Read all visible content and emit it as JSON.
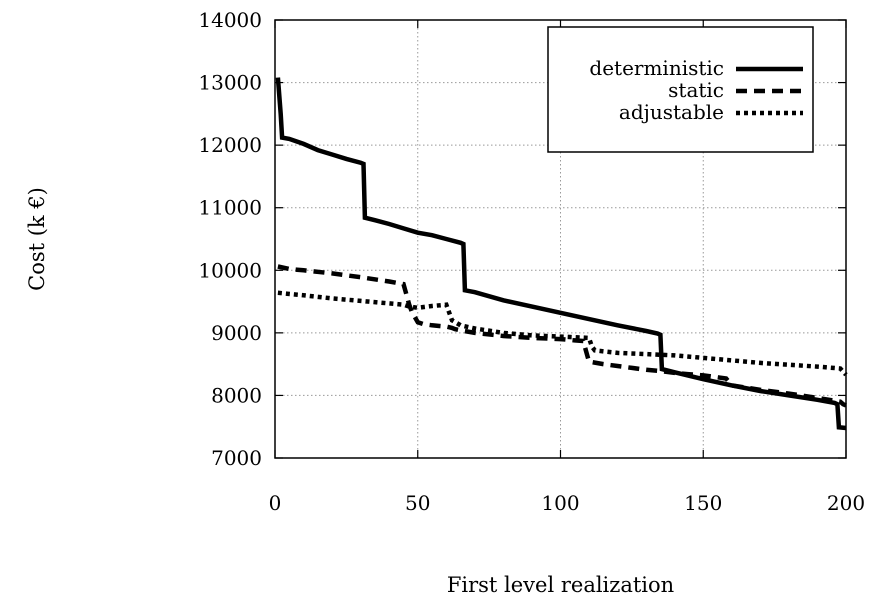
{
  "chart_data": {
    "type": "line",
    "xlabel": "First level realization",
    "ylabel": "Cost (k €)",
    "xlim": [
      0,
      200
    ],
    "ylim": [
      7000,
      14000
    ],
    "xticks": [
      0,
      50,
      100,
      150,
      200
    ],
    "yticks": [
      7000,
      8000,
      9000,
      10000,
      11000,
      12000,
      13000,
      14000
    ],
    "grid": true,
    "legend_position": "top-right",
    "series": [
      {
        "name": "deterministic",
        "style": "solid",
        "color": "#000000",
        "x": [
          1,
          2,
          2.5,
          5,
          10,
          15,
          20,
          25,
          30,
          31,
          31.5,
          35,
          40,
          45,
          50,
          55,
          60,
          65,
          66,
          66.5,
          70,
          80,
          90,
          100,
          110,
          120,
          130,
          134,
          135,
          135.5,
          140,
          150,
          160,
          170,
          180,
          190,
          196,
          197,
          197.5,
          200
        ],
        "y": [
          13080,
          12500,
          12120,
          12100,
          12020,
          11920,
          11850,
          11780,
          11720,
          11700,
          10840,
          10800,
          10740,
          10670,
          10600,
          10560,
          10500,
          10440,
          10420,
          9680,
          9650,
          9520,
          9420,
          9320,
          9220,
          9120,
          9030,
          8990,
          8970,
          8420,
          8370,
          8260,
          8160,
          8070,
          8000,
          7930,
          7880,
          7860,
          7490,
          7480
        ]
      },
      {
        "name": "static",
        "style": "dashed",
        "color": "#000000",
        "x": [
          1,
          5,
          10,
          20,
          30,
          40,
          45,
          46,
          47,
          48,
          50,
          52,
          55,
          60,
          62,
          63,
          65,
          70,
          80,
          90,
          100,
          105,
          108,
          109,
          110,
          115,
          120,
          125,
          130,
          135,
          140,
          145,
          150,
          155,
          158,
          160,
          170,
          180,
          190,
          198,
          199,
          200
        ],
        "y": [
          10060,
          10020,
          10000,
          9950,
          9890,
          9820,
          9780,
          9620,
          9450,
          9330,
          9170,
          9140,
          9120,
          9100,
          9080,
          9060,
          9040,
          9000,
          8950,
          8920,
          8900,
          8880,
          8870,
          8700,
          8540,
          8500,
          8470,
          8440,
          8410,
          8390,
          8360,
          8340,
          8320,
          8290,
          8270,
          8160,
          8090,
          8030,
          7960,
          7900,
          7860,
          7840
        ]
      },
      {
        "name": "adjustable",
        "style": "dotted",
        "color": "#000000",
        "x": [
          1,
          10,
          20,
          30,
          40,
          45,
          47,
          50,
          55,
          60,
          62,
          65,
          70,
          80,
          90,
          100,
          110,
          111,
          112,
          120,
          130,
          140,
          150,
          160,
          170,
          180,
          190,
          198,
          200
        ],
        "y": [
          9640,
          9600,
          9550,
          9510,
          9470,
          9450,
          9420,
          9400,
          9430,
          9450,
          9200,
          9120,
          9070,
          9000,
          8960,
          8940,
          8920,
          8780,
          8720,
          8680,
          8660,
          8640,
          8600,
          8560,
          8520,
          8490,
          8460,
          8430,
          8330
        ]
      }
    ]
  }
}
